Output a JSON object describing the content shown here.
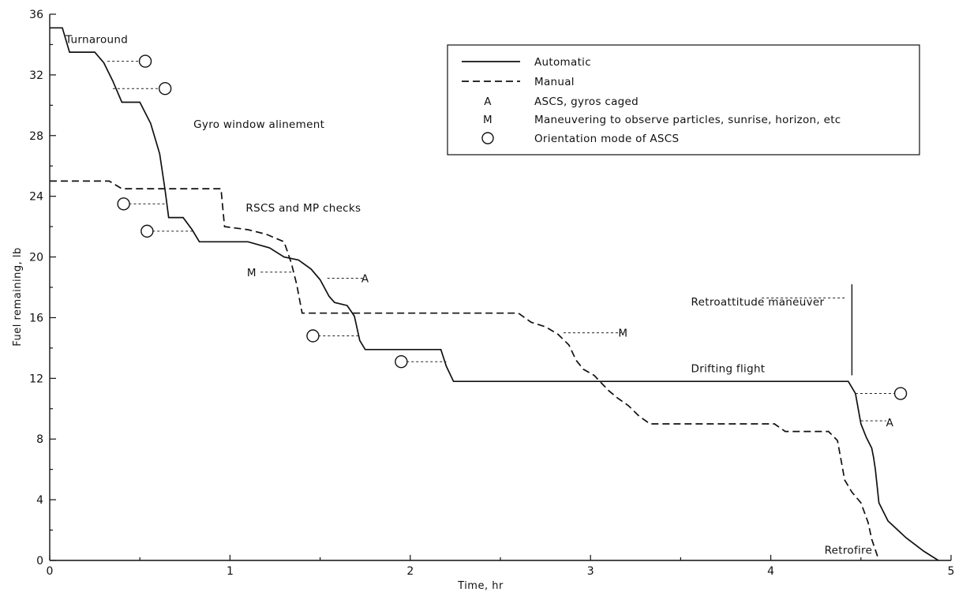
{
  "chart_data": {
    "type": "line",
    "xlabel": "Time, hr",
    "ylabel": "Fuel remaining, lb",
    "xlim": [
      0,
      5
    ],
    "ylim": [
      0,
      36
    ],
    "xticks": [
      "0",
      "1",
      "2",
      "3",
      "4",
      "5"
    ],
    "yticks": [
      "0",
      "4",
      "8",
      "12",
      "16",
      "20",
      "24",
      "28",
      "32",
      "36"
    ],
    "grid": false,
    "legend_position": "top-right",
    "legend": [
      {
        "symbol": "solid-line",
        "text": "Automatic"
      },
      {
        "symbol": "dashed-line",
        "text": "Manual"
      },
      {
        "symbol": "A",
        "text": "ASCS, gyros caged"
      },
      {
        "symbol": "M",
        "text": "Maneuvering to observe particles, sunrise, horizon, etc"
      },
      {
        "symbol": "circle",
        "text": "Orientation mode of ASCS"
      }
    ],
    "series": [
      {
        "name": "Automatic",
        "style": "solid",
        "points": [
          [
            0,
            35.1
          ],
          [
            0.07,
            35.1
          ],
          [
            0.11,
            33.5
          ],
          [
            0.25,
            33.5
          ],
          [
            0.3,
            32.8
          ],
          [
            0.35,
            31.6
          ],
          [
            0.4,
            30.2
          ],
          [
            0.5,
            30.2
          ],
          [
            0.56,
            28.8
          ],
          [
            0.61,
            26.8
          ],
          [
            0.64,
            24.4
          ],
          [
            0.66,
            22.6
          ],
          [
            0.74,
            22.6
          ],
          [
            0.79,
            21.8
          ],
          [
            0.83,
            21.0
          ],
          [
            1.1,
            21.0
          ],
          [
            1.22,
            20.6
          ],
          [
            1.3,
            20.0
          ],
          [
            1.38,
            19.8
          ],
          [
            1.45,
            19.2
          ],
          [
            1.5,
            18.5
          ],
          [
            1.55,
            17.4
          ],
          [
            1.58,
            17.0
          ],
          [
            1.65,
            16.8
          ],
          [
            1.69,
            16.1
          ],
          [
            1.72,
            14.5
          ],
          [
            1.75,
            13.9
          ],
          [
            2.17,
            13.9
          ],
          [
            2.2,
            12.8
          ],
          [
            2.24,
            11.8
          ],
          [
            4.43,
            11.8
          ],
          [
            4.47,
            11.0
          ],
          [
            4.5,
            9.0
          ],
          [
            4.53,
            8.1
          ],
          [
            4.56,
            7.4
          ],
          [
            4.57,
            6.8
          ],
          [
            4.58,
            6.0
          ],
          [
            4.6,
            3.8
          ],
          [
            4.65,
            2.6
          ],
          [
            4.75,
            1.5
          ],
          [
            4.85,
            0.6
          ],
          [
            4.93,
            0.0
          ]
        ]
      },
      {
        "name": "Manual",
        "style": "dashed",
        "points": [
          [
            0,
            25.0
          ],
          [
            0.33,
            25.0
          ],
          [
            0.4,
            24.5
          ],
          [
            0.95,
            24.5
          ],
          [
            0.97,
            22.0
          ],
          [
            1.1,
            21.8
          ],
          [
            1.2,
            21.5
          ],
          [
            1.3,
            21.0
          ],
          [
            1.34,
            19.6
          ],
          [
            1.37,
            18.2
          ],
          [
            1.4,
            16.3
          ],
          [
            2.6,
            16.3
          ],
          [
            2.67,
            15.7
          ],
          [
            2.75,
            15.4
          ],
          [
            2.82,
            14.9
          ],
          [
            2.88,
            14.2
          ],
          [
            2.92,
            13.2
          ],
          [
            2.96,
            12.6
          ],
          [
            3.02,
            12.2
          ],
          [
            3.1,
            11.2
          ],
          [
            3.15,
            10.7
          ],
          [
            3.21,
            10.2
          ],
          [
            3.27,
            9.5
          ],
          [
            3.33,
            9.0
          ],
          [
            4.02,
            9.0
          ],
          [
            4.08,
            8.5
          ],
          [
            4.32,
            8.5
          ],
          [
            4.37,
            7.9
          ],
          [
            4.39,
            6.6
          ],
          [
            4.41,
            5.3
          ],
          [
            4.45,
            4.5
          ],
          [
            4.5,
            3.8
          ],
          [
            4.54,
            2.5
          ],
          [
            4.56,
            1.4
          ],
          [
            4.6,
            0.0
          ]
        ]
      }
    ],
    "annotations": [
      {
        "text": "Turnaround",
        "x": 0.0,
        "y": 34.1
      },
      {
        "text": "Gyro window alinement",
        "x": 0.71,
        "y": 28.5
      },
      {
        "text": "RSCS and MP checks",
        "x": 1.0,
        "y": 23.0
      },
      {
        "text": "Drifting flight",
        "x": 3.47,
        "y": 12.4
      },
      {
        "text": "Retroattitude maneuver",
        "x": 3.47,
        "y": 16.8
      },
      {
        "text": "Retrofire",
        "x": 4.21,
        "y": 0.45
      }
    ],
    "symbol_labels": [
      {
        "text": "M",
        "x": 1.12,
        "y": 19.0
      },
      {
        "text": "A",
        "x": 1.75,
        "y": 18.6
      },
      {
        "text": "M",
        "x": 3.18,
        "y": 15.0
      },
      {
        "text": "A",
        "x": 4.66,
        "y": 9.1
      }
    ],
    "circle_markers": [
      {
        "x": 0.53,
        "y": 32.9
      },
      {
        "x": 0.64,
        "y": 31.1
      },
      {
        "x": 0.41,
        "y": 23.5
      },
      {
        "x": 0.54,
        "y": 21.7
      },
      {
        "x": 1.46,
        "y": 14.8
      },
      {
        "x": 1.95,
        "y": 13.1
      },
      {
        "x": 4.72,
        "y": 11.0
      }
    ],
    "leaders": [
      {
        "from": [
          0.32,
          32.9
        ],
        "to": [
          0.5,
          32.9
        ]
      },
      {
        "from": [
          0.35,
          31.1
        ],
        "to": [
          0.61,
          31.1
        ]
      },
      {
        "from": [
          0.44,
          23.5
        ],
        "to": [
          0.65,
          23.5
        ]
      },
      {
        "from": [
          0.57,
          21.7
        ],
        "to": [
          0.79,
          21.7
        ]
      },
      {
        "from": [
          1.17,
          19.0
        ],
        "to": [
          1.35,
          19.0
        ]
      },
      {
        "from": [
          1.54,
          18.6
        ],
        "to": [
          1.74,
          18.6
        ]
      },
      {
        "from": [
          1.49,
          14.8
        ],
        "to": [
          1.71,
          14.8
        ]
      },
      {
        "from": [
          1.98,
          13.1
        ],
        "to": [
          2.2,
          13.1
        ]
      },
      {
        "from": [
          2.85,
          15.0
        ],
        "to": [
          3.17,
          15.0
        ]
      },
      {
        "from": [
          3.95,
          17.3
        ],
        "to": [
          4.42,
          17.3
        ]
      },
      {
        "from": [
          4.47,
          11.0
        ],
        "to": [
          4.69,
          11.0
        ]
      },
      {
        "from": [
          4.5,
          9.2
        ],
        "to": [
          4.64,
          9.2
        ]
      }
    ],
    "vertical_marker": {
      "x": 4.45,
      "y_from": 12.2,
      "y_to": 18.2
    }
  }
}
